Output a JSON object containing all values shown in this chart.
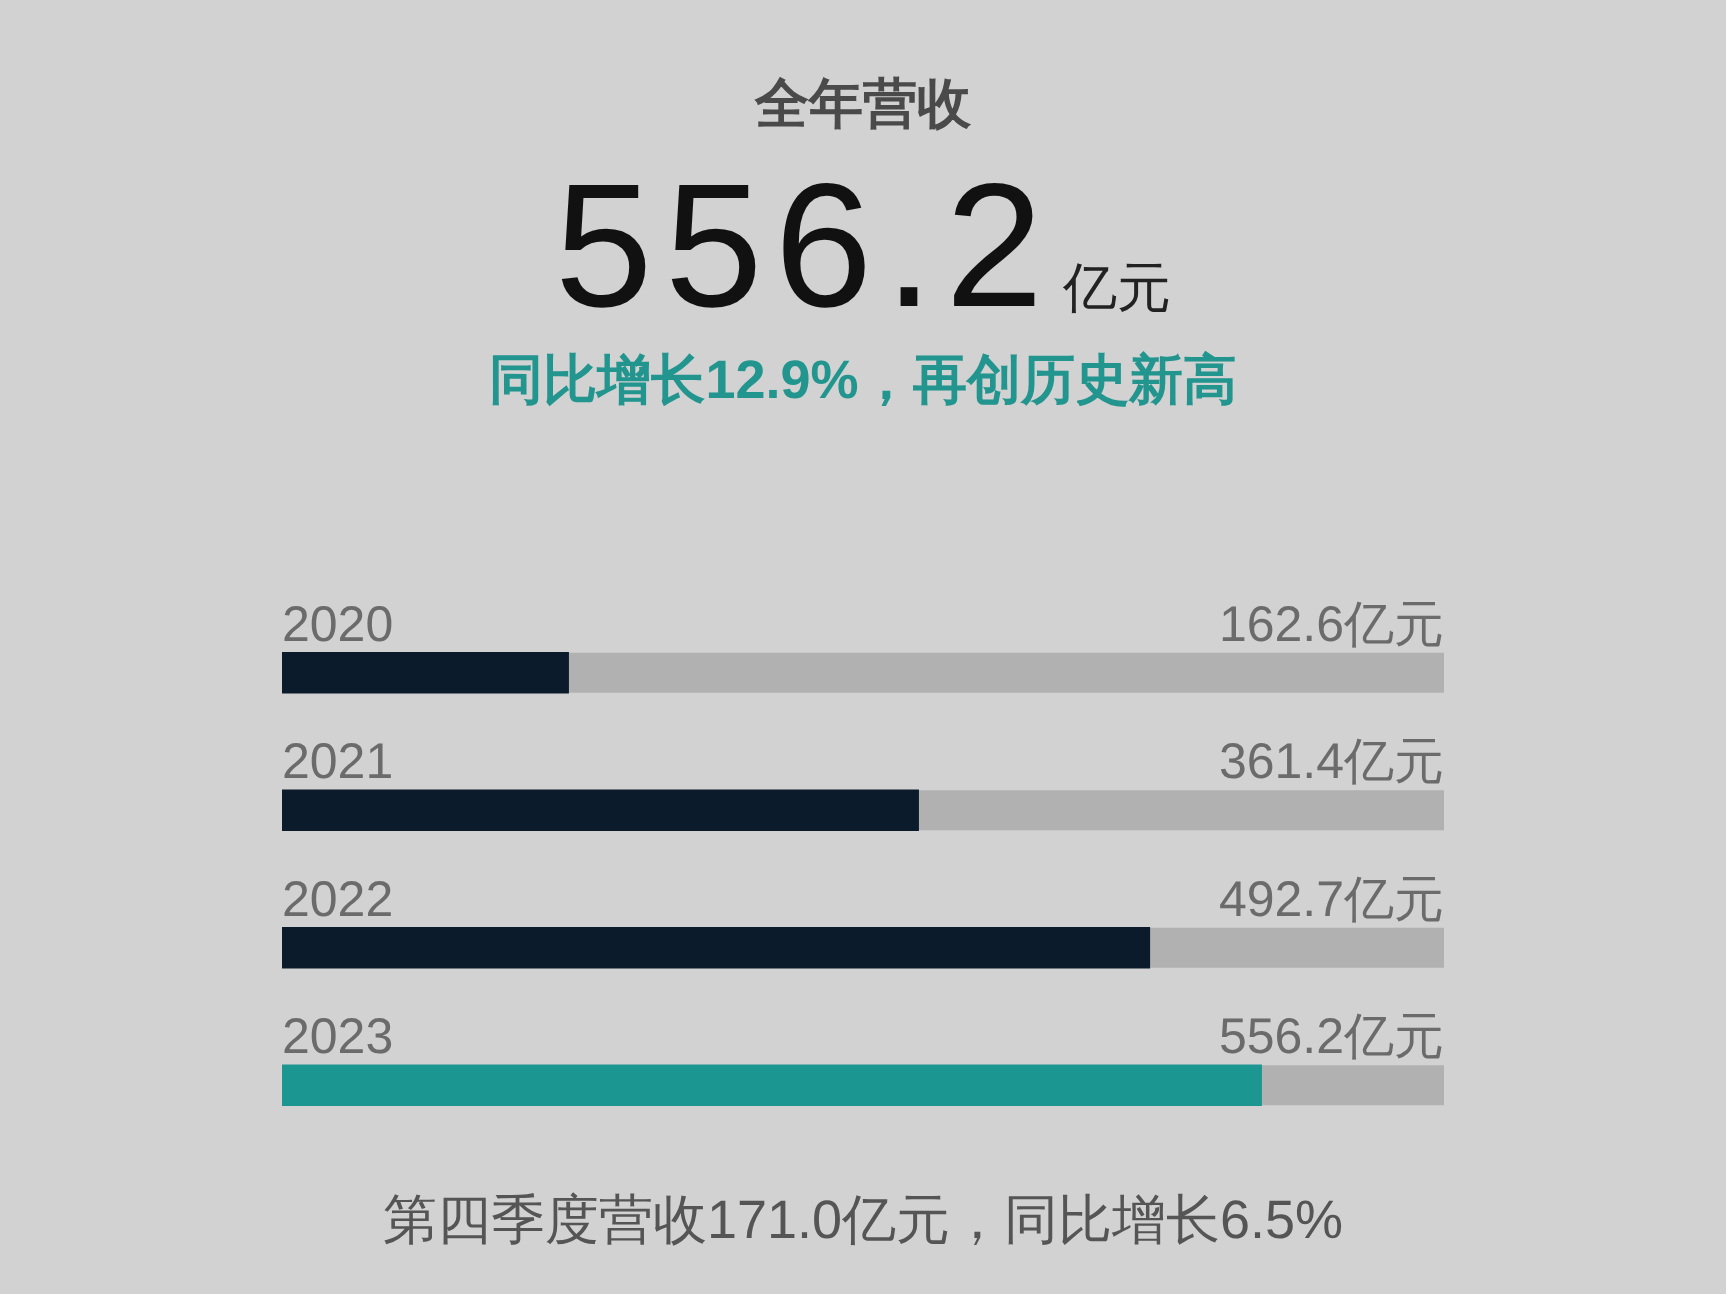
{
  "chart_data": {
    "type": "bar",
    "orientation": "horizontal",
    "title": "全年营收",
    "subtitle": "同比增长12.9%，再创历史新高",
    "annotations": [
      "556.2亿元",
      "第四季度营收171.0亿元，同比增长6.5%"
    ],
    "categories": [
      "2020",
      "2021",
      "2022",
      "2023"
    ],
    "values": [
      162.6,
      361.4,
      492.7,
      556.2
    ],
    "value_labels": [
      "162.6亿元",
      "361.4亿元",
      "492.7亿元",
      "556.2亿元"
    ],
    "colors": [
      "#0c1b2b",
      "#0c1b2b",
      "#0c1b2b",
      "#1c9690"
    ],
    "xlim": [
      0,
      660
    ],
    "tick_labels": "y"
  }
}
